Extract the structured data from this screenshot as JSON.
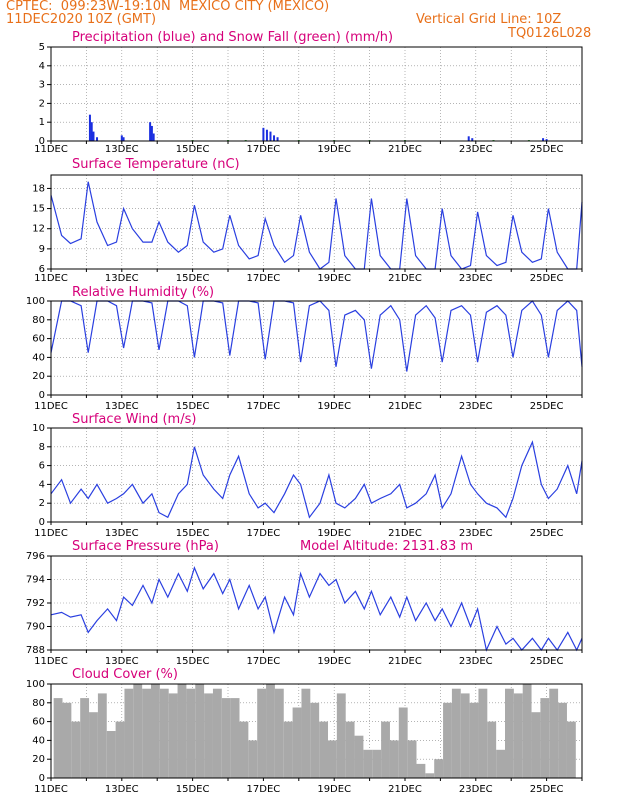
{
  "header": {
    "line1": "CPTEC:  099:23W-19:10N  MEXICO CITY (MEXICO)",
    "line2": "11DEC2020 10Z (GMT)",
    "grid_note": "Vertical Grid Line: 10Z",
    "code": "TQ0126L028",
    "model_altitude": "Model Altitude: 2131.83 m"
  },
  "colors": {
    "header": "#e8701a",
    "title": "#d6007a",
    "line": "#2a3fe0",
    "precip": "#1a2ee0",
    "snow": "#2a9a2a",
    "cloud": "#a9a9a9"
  },
  "x_ticks": [
    "11DEC",
    "13DEC",
    "15DEC",
    "17DEC",
    "19DEC",
    "21DEC",
    "23DEC",
    "25DEC"
  ],
  "chart_data": [
    {
      "type": "bar",
      "title": "Precipitation (blue) and Snow Fall (green) (mm/h)",
      "ylim": [
        0,
        5
      ],
      "yticks": [
        0,
        1,
        2,
        3,
        4,
        5
      ],
      "series": [
        {
          "name": "Precipitation",
          "x": [
            1.1,
            1.15,
            1.2,
            1.3,
            2.0,
            2.05,
            2.8,
            2.85,
            2.9,
            6.0,
            6.1,
            6.2,
            6.3,
            6.4,
            11.8,
            11.9,
            13.9,
            14.0
          ],
          "values": [
            1.4,
            1.0,
            0.5,
            0.2,
            0.3,
            0.2,
            1.0,
            0.8,
            0.4,
            0.7,
            0.6,
            0.5,
            0.3,
            0.2,
            0.25,
            0.15,
            0.15,
            0.1
          ]
        },
        {
          "name": "Snow Fall",
          "x": [
            4.0,
            5.0,
            5.5,
            7.0,
            8.0,
            9.0,
            10.0,
            12.5,
            13.5
          ],
          "values": [
            0.05,
            0.05,
            0.05,
            0.05,
            0.05,
            0.05,
            0.05,
            0.05,
            0.05
          ]
        }
      ]
    },
    {
      "type": "line",
      "title": "Surface Temperature (nC)",
      "ylim": [
        6,
        20
      ],
      "yticks": [
        6,
        9,
        12,
        15,
        18
      ],
      "x": [
        0,
        0.3,
        0.55,
        0.85,
        1.05,
        1.3,
        1.6,
        1.85,
        2.05,
        2.3,
        2.6,
        2.85,
        3.05,
        3.3,
        3.6,
        3.85,
        4.05,
        4.3,
        4.6,
        4.85,
        5.05,
        5.3,
        5.6,
        5.85,
        6.05,
        6.3,
        6.6,
        6.85,
        7.05,
        7.3,
        7.6,
        7.85,
        8.05,
        8.3,
        8.6,
        8.85,
        9.05,
        9.3,
        9.6,
        9.85,
        10.05,
        10.3,
        10.6,
        10.85,
        11.05,
        11.3,
        11.6,
        11.85,
        12.05,
        12.3,
        12.6,
        12.85,
        13.05,
        13.3,
        13.6,
        13.85,
        14.05,
        14.3,
        14.6,
        14.85,
        15.0
      ],
      "values": [
        17,
        11,
        9.8,
        10.5,
        19,
        13,
        9.5,
        10,
        15,
        12,
        10,
        10,
        13,
        10,
        8.5,
        9.5,
        15.5,
        10,
        8.5,
        9,
        14,
        9.5,
        7.5,
        8,
        13.5,
        9.5,
        7,
        8,
        14,
        8.5,
        6,
        7,
        16.5,
        8,
        5,
        6,
        16.5,
        8,
        5,
        6,
        16.5,
        8,
        5,
        6,
        15,
        8,
        6,
        6.5,
        14.5,
        8,
        6.5,
        7,
        14,
        8.5,
        7,
        7.5,
        15,
        8.5,
        5.5,
        6,
        16
      ]
    },
    {
      "type": "line",
      "title": "Relative Humidity (%)",
      "ylim": [
        0,
        100
      ],
      "yticks": [
        0,
        20,
        40,
        60,
        80,
        100
      ],
      "x": [
        0,
        0.3,
        0.55,
        0.85,
        1.05,
        1.3,
        1.6,
        1.85,
        2.05,
        2.3,
        2.6,
        2.85,
        3.05,
        3.3,
        3.6,
        3.85,
        4.05,
        4.3,
        4.6,
        4.85,
        5.05,
        5.3,
        5.6,
        5.85,
        6.05,
        6.3,
        6.6,
        6.85,
        7.05,
        7.3,
        7.6,
        7.85,
        8.05,
        8.3,
        8.6,
        8.85,
        9.05,
        9.3,
        9.6,
        9.85,
        10.05,
        10.3,
        10.6,
        10.85,
        11.05,
        11.3,
        11.6,
        11.85,
        12.05,
        12.3,
        12.6,
        12.85,
        13.05,
        13.3,
        13.6,
        13.85,
        14.05,
        14.3,
        14.6,
        14.85,
        15.0
      ],
      "values": [
        45,
        100,
        100,
        95,
        45,
        100,
        100,
        95,
        50,
        100,
        100,
        98,
        48,
        100,
        100,
        95,
        40,
        100,
        100,
        98,
        42,
        100,
        100,
        98,
        38,
        100,
        100,
        98,
        35,
        95,
        100,
        90,
        30,
        85,
        90,
        80,
        28,
        85,
        95,
        80,
        25,
        85,
        95,
        82,
        35,
        90,
        95,
        85,
        35,
        88,
        95,
        85,
        40,
        90,
        100,
        85,
        40,
        90,
        100,
        90,
        30
      ]
    },
    {
      "type": "line",
      "title": "Surface Wind (m/s)",
      "ylim": [
        0,
        10
      ],
      "yticks": [
        0,
        2,
        4,
        6,
        8,
        10
      ],
      "x": [
        0,
        0.3,
        0.55,
        0.85,
        1.05,
        1.3,
        1.6,
        1.85,
        2.05,
        2.3,
        2.6,
        2.85,
        3.05,
        3.3,
        3.6,
        3.85,
        4.05,
        4.3,
        4.6,
        4.85,
        5.05,
        5.3,
        5.6,
        5.85,
        6.05,
        6.3,
        6.6,
        6.85,
        7.05,
        7.3,
        7.6,
        7.85,
        8.05,
        8.3,
        8.6,
        8.85,
        9.05,
        9.3,
        9.6,
        9.85,
        10.05,
        10.3,
        10.6,
        10.85,
        11.05,
        11.3,
        11.6,
        11.85,
        12.05,
        12.3,
        12.6,
        12.85,
        13.05,
        13.3,
        13.6,
        13.85,
        14.05,
        14.3,
        14.6,
        14.85,
        15.0
      ],
      "values": [
        3,
        4.5,
        2,
        3.5,
        2.5,
        4,
        2,
        2.5,
        3,
        4,
        2,
        3,
        1,
        0.5,
        3,
        4,
        8,
        5,
        3.5,
        2.5,
        5,
        7,
        3,
        1.5,
        2,
        1,
        3,
        5,
        4,
        0.5,
        2,
        5,
        2,
        1.5,
        2.5,
        4,
        2,
        2.5,
        3,
        4,
        1.5,
        2,
        3,
        5,
        1.5,
        3,
        7,
        4,
        3,
        2,
        1.5,
        0.5,
        2.5,
        6,
        8.5,
        4,
        2.5,
        3.5,
        6,
        3,
        6.5
      ]
    },
    {
      "type": "line",
      "title": "Surface Pressure (hPa)",
      "ylim": [
        788,
        796
      ],
      "yticks": [
        788,
        790,
        792,
        794,
        796
      ],
      "x": [
        0,
        0.3,
        0.55,
        0.85,
        1.05,
        1.3,
        1.6,
        1.85,
        2.05,
        2.3,
        2.6,
        2.85,
        3.05,
        3.3,
        3.6,
        3.85,
        4.05,
        4.3,
        4.6,
        4.85,
        5.05,
        5.3,
        5.6,
        5.85,
        6.05,
        6.3,
        6.6,
        6.85,
        7.05,
        7.3,
        7.6,
        7.85,
        8.05,
        8.3,
        8.6,
        8.85,
        9.05,
        9.3,
        9.6,
        9.85,
        10.05,
        10.3,
        10.6,
        10.85,
        11.05,
        11.3,
        11.6,
        11.85,
        12.05,
        12.3,
        12.6,
        12.85,
        13.05,
        13.3,
        13.6,
        13.85,
        14.05,
        14.3,
        14.6,
        14.85,
        15.0
      ],
      "values": [
        791,
        791.2,
        790.8,
        791,
        789.5,
        790.5,
        791.5,
        790.5,
        792.5,
        791.8,
        793.5,
        792,
        794,
        792.5,
        794.5,
        793,
        795,
        793.2,
        794.5,
        792.8,
        794,
        791.5,
        793.5,
        791.5,
        792.5,
        789.5,
        792.5,
        791,
        794.5,
        792.5,
        794.5,
        793.5,
        794,
        792,
        793,
        791.5,
        793,
        791,
        792.5,
        790.8,
        792.5,
        790.5,
        792,
        790.5,
        791.5,
        790,
        792,
        790,
        791.5,
        788,
        790,
        788.5,
        789,
        788,
        789,
        788,
        789,
        788,
        789.5,
        788,
        789
      ]
    },
    {
      "type": "bar",
      "title": "Cloud Cover (%)",
      "ylim": [
        0,
        100
      ],
      "yticks": [
        0,
        20,
        40,
        60,
        80,
        100
      ],
      "x": [
        0.2,
        0.45,
        0.7,
        0.95,
        1.2,
        1.45,
        1.7,
        1.95,
        2.2,
        2.45,
        2.7,
        2.95,
        3.2,
        3.45,
        3.7,
        3.95,
        4.2,
        4.45,
        4.7,
        4.95,
        5.2,
        5.45,
        5.7,
        5.95,
        6.2,
        6.45,
        6.7,
        6.95,
        7.2,
        7.45,
        7.7,
        7.95,
        8.2,
        8.45,
        8.7,
        8.95,
        9.2,
        9.45,
        9.7,
        9.95,
        10.2,
        10.45,
        10.7,
        10.95,
        11.2,
        11.45,
        11.7,
        11.95,
        12.2,
        12.45,
        12.7,
        12.95,
        13.2,
        13.45,
        13.7,
        13.95,
        14.2,
        14.45,
        14.7
      ],
      "values": [
        85,
        80,
        60,
        85,
        70,
        90,
        50,
        60,
        95,
        100,
        95,
        100,
        95,
        90,
        100,
        95,
        100,
        90,
        95,
        85,
        85,
        60,
        40,
        95,
        100,
        95,
        60,
        75,
        95,
        80,
        60,
        40,
        90,
        60,
        45,
        30,
        30,
        60,
        40,
        75,
        40,
        15,
        5,
        20,
        80,
        95,
        90,
        80,
        95,
        60,
        30,
        95,
        90,
        100,
        70,
        85,
        95,
        80,
        60
      ]
    }
  ]
}
